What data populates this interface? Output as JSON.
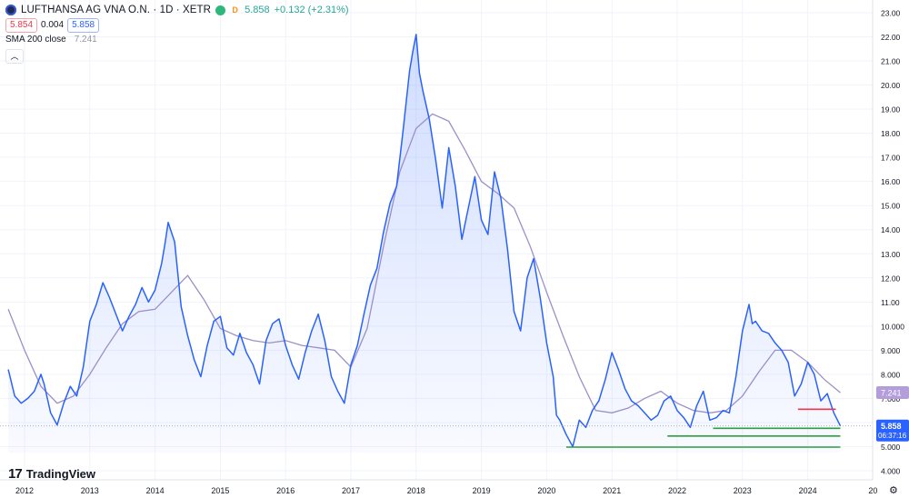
{
  "header": {
    "symbol_title": "LUFTHANSA AG VNA O.N. · 1D · XETR",
    "last_price": "5.858",
    "change": "+0.132 (+2.31%)",
    "status_letter": "D",
    "bid": "5.854",
    "spread": "0.004",
    "ask": "5.858",
    "indicator_name": "SMA 200 close",
    "indicator_value": "7.241"
  },
  "branding": {
    "name": "TradingView"
  },
  "price_axis": {
    "ticks": [
      "23.00",
      "22.00",
      "21.00",
      "20.00",
      "19.00",
      "18.00",
      "17.00",
      "16.00",
      "15.00",
      "14.00",
      "13.00",
      "12.00",
      "11.00",
      "10.000",
      "9.000",
      "8.000",
      "7.000",
      "6.000",
      "5.000",
      "4.000"
    ],
    "sma_label": "7.241",
    "price_label": "5.858",
    "countdown": "06:37:16"
  },
  "time_axis": {
    "ticks": [
      "2012",
      "2013",
      "2014",
      "2015",
      "2016",
      "2017",
      "2018",
      "2019",
      "2020",
      "2021",
      "2022",
      "2023",
      "2024",
      "20"
    ]
  },
  "colors": {
    "price_line": "#2962ff",
    "price_fill": "#2962ff",
    "sma_line": "#9c8fc8",
    "sma_label_bg": "#b39ddb",
    "support_lines": "#2e9e3e",
    "resistance_line": "#f23645",
    "price_label_bg": "#2962ff"
  },
  "chart_data": {
    "type": "line",
    "title": "LUFTHANSA AG VNA O.N. · 1D · XETR",
    "ylim": [
      4.0,
      23.0
    ],
    "xlim": [
      2011.75,
      2025.0
    ],
    "series": [
      {
        "name": "LUFTHANSA AG VNA O.N.",
        "x": [
          2011.75,
          2011.85,
          2011.95,
          2012.05,
          2012.15,
          2012.25,
          2012.3,
          2012.4,
          2012.5,
          2012.6,
          2012.7,
          2012.8,
          2012.9,
          2013.0,
          2013.1,
          2013.2,
          2013.3,
          2013.4,
          2013.5,
          2013.6,
          2013.7,
          2013.8,
          2013.9,
          2014.0,
          2014.1,
          2014.15,
          2014.2,
          2014.3,
          2014.4,
          2014.5,
          2014.6,
          2014.7,
          2014.8,
          2014.9,
          2015.0,
          2015.1,
          2015.2,
          2015.3,
          2015.4,
          2015.5,
          2015.6,
          2015.7,
          2015.8,
          2015.9,
          2016.0,
          2016.1,
          2016.2,
          2016.3,
          2016.4,
          2016.5,
          2016.6,
          2016.7,
          2016.8,
          2016.9,
          2017.0,
          2017.1,
          2017.2,
          2017.3,
          2017.4,
          2017.5,
          2017.6,
          2017.7,
          2017.8,
          2017.9,
          2017.95,
          2018.0,
          2018.05,
          2018.1,
          2018.2,
          2018.3,
          2018.4,
          2018.5,
          2018.6,
          2018.7,
          2018.8,
          2018.9,
          2019.0,
          2019.1,
          2019.2,
          2019.3,
          2019.4,
          2019.5,
          2019.6,
          2019.7,
          2019.8,
          2019.9,
          2020.0,
          2020.1,
          2020.15,
          2020.2,
          2020.3,
          2020.4,
          2020.5,
          2020.6,
          2020.7,
          2020.8,
          2020.9,
          2021.0,
          2021.1,
          2021.2,
          2021.3,
          2021.4,
          2021.5,
          2021.6,
          2021.7,
          2021.8,
          2021.9,
          2022.0,
          2022.1,
          2022.2,
          2022.3,
          2022.4,
          2022.5,
          2022.6,
          2022.7,
          2022.8,
          2022.9,
          2023.0,
          2023.1,
          2023.15,
          2023.2,
          2023.3,
          2023.4,
          2023.5,
          2023.6,
          2023.7,
          2023.8,
          2023.9,
          2024.0,
          2024.1,
          2024.2,
          2024.3,
          2024.4,
          2024.5
        ],
        "values": [
          8.2,
          7.1,
          6.8,
          7.0,
          7.3,
          8.0,
          7.6,
          6.4,
          5.9,
          6.8,
          7.5,
          7.1,
          8.3,
          10.2,
          10.9,
          11.8,
          11.2,
          10.5,
          9.8,
          10.4,
          10.9,
          11.6,
          11.0,
          11.5,
          12.6,
          13.4,
          14.3,
          13.5,
          10.8,
          9.6,
          8.6,
          7.9,
          9.2,
          10.2,
          10.4,
          9.1,
          8.8,
          9.7,
          8.9,
          8.4,
          7.6,
          9.4,
          10.1,
          10.3,
          9.2,
          8.4,
          7.8,
          8.9,
          9.8,
          10.5,
          9.4,
          7.9,
          7.3,
          6.8,
          8.4,
          9.2,
          10.5,
          11.7,
          12.4,
          13.9,
          15.1,
          15.8,
          18.1,
          20.6,
          21.4,
          22.1,
          20.5,
          19.8,
          18.6,
          16.9,
          14.9,
          17.4,
          15.8,
          13.6,
          14.9,
          16.2,
          14.4,
          13.8,
          16.4,
          15.3,
          13.2,
          10.6,
          9.8,
          12.0,
          12.8,
          11.2,
          9.3,
          7.9,
          6.3,
          6.1,
          5.5,
          5.0,
          6.1,
          5.8,
          6.5,
          6.9,
          7.8,
          8.9,
          8.2,
          7.4,
          6.9,
          6.7,
          6.4,
          6.1,
          6.3,
          6.9,
          7.1,
          6.5,
          6.2,
          5.8,
          6.7,
          7.3,
          6.1,
          6.2,
          6.5,
          6.4,
          7.9,
          9.8,
          10.9,
          10.1,
          10.2,
          9.8,
          9.7,
          9.3,
          9.0,
          8.5,
          7.1,
          7.6,
          8.5,
          8.0,
          6.9,
          7.2,
          6.4,
          5.86
        ]
      },
      {
        "name": "SMA 200 close",
        "x": [
          2011.75,
          2012.0,
          2012.25,
          2012.5,
          2012.75,
          2013.0,
          2013.25,
          2013.5,
          2013.75,
          2014.0,
          2014.25,
          2014.5,
          2014.75,
          2015.0,
          2015.25,
          2015.5,
          2015.75,
          2016.0,
          2016.25,
          2016.5,
          2016.75,
          2017.0,
          2017.25,
          2017.5,
          2017.75,
          2018.0,
          2018.25,
          2018.5,
          2018.75,
          2019.0,
          2019.25,
          2019.5,
          2019.75,
          2020.0,
          2020.25,
          2020.5,
          2020.75,
          2021.0,
          2021.25,
          2021.5,
          2021.75,
          2022.0,
          2022.25,
          2022.5,
          2022.75,
          2023.0,
          2023.25,
          2023.5,
          2023.75,
          2024.0,
          2024.25,
          2024.5
        ],
        "values": [
          10.7,
          9.0,
          7.5,
          6.8,
          7.1,
          8.0,
          9.1,
          10.1,
          10.6,
          10.7,
          11.4,
          12.1,
          11.1,
          9.9,
          9.6,
          9.4,
          9.3,
          9.4,
          9.2,
          9.1,
          9.0,
          8.3,
          9.9,
          13.3,
          16.4,
          18.2,
          18.8,
          18.5,
          17.3,
          16.0,
          15.5,
          14.9,
          13.3,
          11.4,
          9.6,
          7.9,
          6.5,
          6.4,
          6.6,
          7.0,
          7.3,
          6.8,
          6.5,
          6.4,
          6.5,
          7.1,
          8.1,
          9.0,
          9.0,
          8.5,
          7.8,
          7.24
        ]
      }
    ],
    "lines": [
      {
        "name": "resistance",
        "value": 6.55,
        "x_start": 2023.85,
        "x_end": 2024.43
      },
      {
        "name": "support-1",
        "value": 5.76,
        "x_start": 2022.55,
        "x_end": 2024.5
      },
      {
        "name": "support-2",
        "value": 5.44,
        "x_start": 2021.85,
        "x_end": 2024.5
      },
      {
        "name": "support-3",
        "value": 4.98,
        "x_start": 2020.3,
        "x_end": 2024.5
      }
    ],
    "grid": true,
    "legend": "top-left"
  }
}
